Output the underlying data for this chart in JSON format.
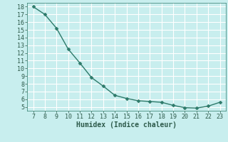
{
  "x": [
    7,
    8,
    9,
    10,
    11,
    12,
    13,
    14,
    15,
    16,
    17,
    18,
    19,
    20,
    21,
    22,
    23
  ],
  "y": [
    18.0,
    17.0,
    15.2,
    12.5,
    10.7,
    8.8,
    7.7,
    6.5,
    6.1,
    5.8,
    5.7,
    5.6,
    5.2,
    4.9,
    4.85,
    5.1,
    5.6
  ],
  "line_color": "#2d7a6a",
  "marker": "D",
  "marker_size": 2.5,
  "bg_color": "#c8eeee",
  "grid_color": "#ffffff",
  "xlabel": "Humidex (Indice chaleur)",
  "xlabel_color": "#2d5a4a",
  "xlim": [
    6.5,
    23.5
  ],
  "ylim": [
    4.5,
    18.5
  ],
  "xticks": [
    7,
    8,
    9,
    10,
    11,
    12,
    13,
    14,
    15,
    16,
    17,
    18,
    19,
    20,
    21,
    22,
    23
  ],
  "yticks": [
    5,
    6,
    7,
    8,
    9,
    10,
    11,
    12,
    13,
    14,
    15,
    16,
    17,
    18
  ],
  "tick_color": "#2d5a4a",
  "font_size": 6,
  "xlabel_font_size": 7,
  "line_width": 1.0
}
